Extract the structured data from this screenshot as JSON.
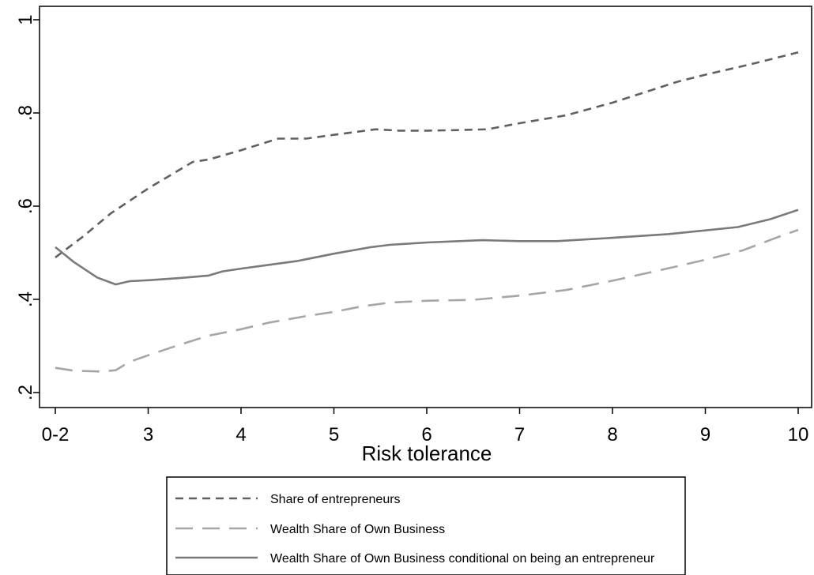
{
  "chart_data": {
    "type": "line",
    "title": "",
    "xlabel": "Risk tolerance",
    "ylabel": "",
    "xlim": [
      2,
      10
    ],
    "ylim": [
      0.2,
      1.0
    ],
    "grid": false,
    "legend_position": "bottom-center",
    "x_ticks": [
      {
        "value": 2,
        "label": "0-2"
      },
      {
        "value": 3,
        "label": "3"
      },
      {
        "value": 4,
        "label": "4"
      },
      {
        "value": 5,
        "label": "5"
      },
      {
        "value": 6,
        "label": "6"
      },
      {
        "value": 7,
        "label": "7"
      },
      {
        "value": 8,
        "label": "8"
      },
      {
        "value": 9,
        "label": "9"
      },
      {
        "value": 10,
        "label": "10"
      }
    ],
    "y_ticks": [
      {
        "value": 0.2,
        "label": ".2"
      },
      {
        "value": 0.4,
        "label": ".4"
      },
      {
        "value": 0.6,
        "label": ".6"
      },
      {
        "value": 0.8,
        "label": ".8"
      },
      {
        "value": 1.0,
        "label": "1"
      }
    ],
    "series": [
      {
        "name": "Share of entrepreneurs",
        "color": "#606060",
        "dash": "short-dash",
        "x": [
          2,
          2.3,
          2.6,
          3.0,
          3.48,
          3.65,
          4.0,
          4.4,
          4.7,
          5.0,
          5.45,
          5.7,
          6.0,
          6.3,
          6.65,
          7.0,
          7.5,
          8.0,
          8.7,
          9.0,
          9.5,
          10.0
        ],
        "y": [
          0.49,
          0.535,
          0.585,
          0.638,
          0.695,
          0.7,
          0.72,
          0.745,
          0.745,
          0.753,
          0.765,
          0.762,
          0.762,
          0.763,
          0.765,
          0.778,
          0.795,
          0.822,
          0.867,
          0.882,
          0.905,
          0.93
        ]
      },
      {
        "name": "Wealth Share of Own Business",
        "color": "#a6a6a6",
        "dash": "long-dash",
        "x": [
          2,
          2.2,
          2.5,
          2.65,
          2.8,
          3.0,
          3.3,
          3.65,
          4.0,
          4.3,
          4.7,
          5.0,
          5.3,
          5.6,
          6.0,
          6.5,
          7.0,
          7.5,
          8.0,
          8.5,
          9.0,
          9.4,
          9.8,
          10.0
        ],
        "y": [
          0.253,
          0.247,
          0.245,
          0.248,
          0.266,
          0.28,
          0.3,
          0.322,
          0.336,
          0.35,
          0.364,
          0.373,
          0.385,
          0.393,
          0.397,
          0.399,
          0.408,
          0.42,
          0.44,
          0.462,
          0.485,
          0.505,
          0.535,
          0.549
        ]
      },
      {
        "name": "Wealth Share of Own Business conditional on being an entrepreneur",
        "color": "#7a7a7a",
        "dash": "solid",
        "x": [
          2,
          2.2,
          2.45,
          2.65,
          2.8,
          3.0,
          3.35,
          3.65,
          3.8,
          4.0,
          4.3,
          4.6,
          5.0,
          5.4,
          5.6,
          6.0,
          6.6,
          7.0,
          7.4,
          8.0,
          8.6,
          9.0,
          9.35,
          9.7,
          10.0
        ],
        "y": [
          0.512,
          0.48,
          0.447,
          0.432,
          0.439,
          0.441,
          0.446,
          0.451,
          0.46,
          0.466,
          0.474,
          0.482,
          0.498,
          0.512,
          0.517,
          0.522,
          0.527,
          0.525,
          0.525,
          0.532,
          0.54,
          0.548,
          0.555,
          0.572,
          0.592
        ]
      }
    ]
  }
}
